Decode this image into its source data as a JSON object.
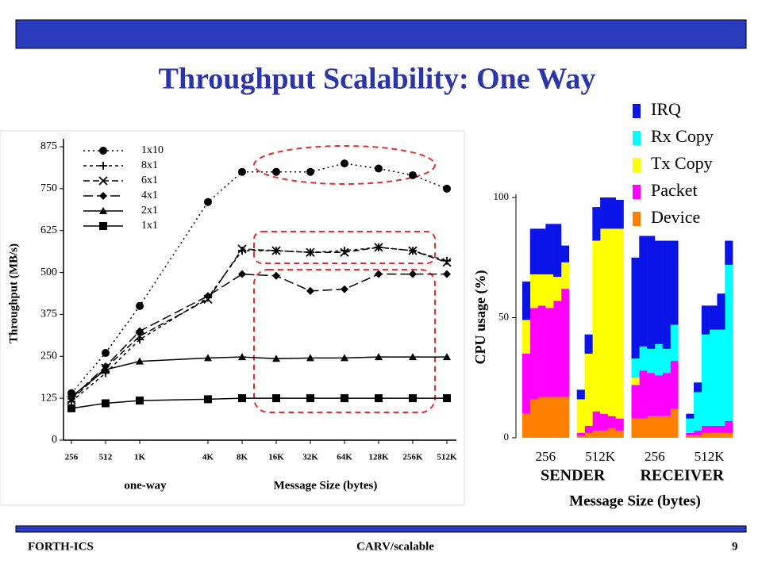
{
  "header": {
    "title": "Throughput Scalability: One Way"
  },
  "footer": {
    "left": "FORTH-ICS",
    "center": "CARV/scalable",
    "page": "9"
  },
  "chart_data": [
    {
      "type": "line",
      "x_label": "Message Size (bytes)",
      "x_note": "one-way",
      "y_label": "Throughput (MB/s)",
      "xscale": "log",
      "x": [
        256,
        512,
        1024,
        4096,
        8192,
        16384,
        32768,
        65536,
        131072,
        262144,
        524288
      ],
      "xlim": [
        256,
        524288
      ],
      "xticks": [
        256,
        512,
        {
          "value": 1024,
          "label": "1K"
        },
        {
          "value": 4096,
          "label": "4K"
        },
        {
          "value": 8192,
          "label": "8K"
        },
        {
          "value": 16384,
          "label": "16K"
        },
        {
          "value": 32768,
          "label": "32K"
        },
        {
          "value": 65536,
          "label": "64K"
        },
        {
          "value": 131072,
          "label": "128K"
        },
        {
          "value": 262144,
          "label": "256K"
        },
        {
          "value": 524288,
          "label": "512K"
        }
      ],
      "ylim": [
        0,
        875
      ],
      "yticks": [
        0,
        125,
        250,
        375,
        500,
        625,
        750,
        875
      ],
      "series": [
        {
          "name": "1x10",
          "color": "#000000",
          "marker": "circle",
          "dash": "dotted",
          "values": [
            140,
            260,
            400,
            710,
            800,
            800,
            800,
            825,
            810,
            790,
            750
          ]
        },
        {
          "name": "8x1",
          "color": "#000000",
          "marker": "plus",
          "dash": "short-dashed",
          "values": [
            115,
            200,
            300,
            425,
            565,
            565,
            560,
            565,
            575,
            565,
            535
          ]
        },
        {
          "name": "6x1",
          "color": "#000000",
          "marker": "cross",
          "dash": "dashed",
          "values": [
            120,
            215,
            310,
            420,
            570,
            565,
            560,
            560,
            575,
            565,
            530
          ]
        },
        {
          "name": "4x1",
          "color": "#000000",
          "marker": "diamond",
          "dash": "long-dashed",
          "values": [
            125,
            220,
            325,
            430,
            495,
            490,
            445,
            450,
            495,
            495,
            495
          ]
        },
        {
          "name": "2x1",
          "color": "#000000",
          "marker": "triangle",
          "dash": "solid",
          "values": [
            130,
            210,
            235,
            245,
            248,
            243,
            245,
            245,
            248,
            248,
            248
          ]
        },
        {
          "name": "1x1",
          "color": "#000000",
          "marker": "square",
          "dash": "solid",
          "values": [
            95,
            110,
            118,
            122,
            125,
            125,
            125,
            125,
            125,
            125,
            125
          ]
        }
      ]
    },
    {
      "type": "stacked-bar",
      "x_label": "Message Size (bytes)",
      "y_label": "CPU usage (%)",
      "groups": [
        {
          "name": "SENDER",
          "sizes": [
            "256",
            "512K"
          ]
        },
        {
          "name": "RECEIVER",
          "sizes": [
            "256",
            "512K"
          ]
        }
      ],
      "ylim": [
        0,
        100
      ],
      "yticks": [
        0,
        50,
        100
      ],
      "series": [
        {
          "name": "Device",
          "color": "#ff8000",
          "values": [
            10,
            16,
            17,
            17,
            17,
            17,
            1,
            2,
            3,
            3,
            4,
            3,
            8,
            8,
            9,
            9,
            9,
            12,
            1,
            1,
            2,
            2,
            2,
            2
          ]
        },
        {
          "name": "Packet",
          "color": "#ff00ff",
          "values": [
            25,
            38,
            38,
            37,
            40,
            45,
            1,
            3,
            8,
            7,
            5,
            5,
            14,
            20,
            18,
            17,
            18,
            20,
            1,
            2,
            3,
            3,
            3,
            5
          ]
        },
        {
          "name": "Tx Copy",
          "color": "#ffff00",
          "values": [
            14,
            14,
            13,
            14,
            10,
            11,
            14,
            30,
            71,
            77,
            78,
            79,
            3,
            0,
            0,
            0,
            0,
            0,
            0,
            0,
            0,
            0,
            0,
            0
          ]
        },
        {
          "name": "Rx Copy",
          "color": "#00ffff",
          "values": [
            0,
            0,
            0,
            0,
            0,
            0,
            0,
            0,
            0,
            0,
            0,
            0,
            8,
            10,
            10,
            13,
            10,
            15,
            6,
            16,
            38,
            40,
            40,
            65
          ]
        },
        {
          "name": "IRQ",
          "color": "#0a14e6",
          "values": [
            16,
            19,
            19,
            21,
            22,
            7,
            4,
            8,
            14,
            13,
            13,
            12,
            42,
            46,
            47,
            43,
            45,
            35,
            2,
            4,
            12,
            10,
            15,
            10
          ]
        }
      ]
    }
  ]
}
